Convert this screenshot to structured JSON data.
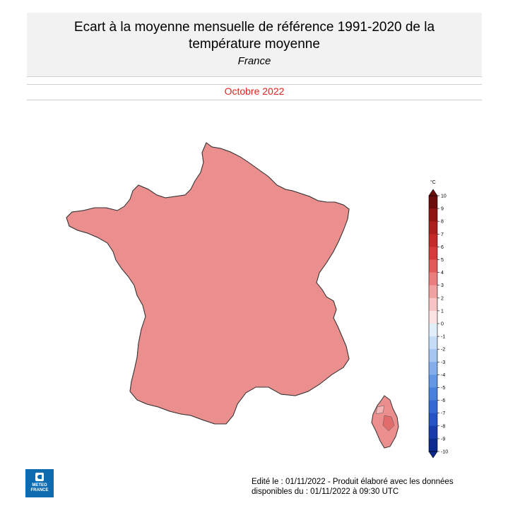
{
  "header": {
    "title_line1": "Ecart à la moyenne mensuelle de référence 1991-2020 de la",
    "title_line2": "température moyenne",
    "region": "France"
  },
  "period": "Octobre 2022",
  "legend": {
    "unit": "°C",
    "ticks": [
      "10",
      "9",
      "8",
      "7",
      "6",
      "5",
      "4",
      "3",
      "2",
      "1",
      "0",
      "-1",
      "-2",
      "-3",
      "-4",
      "-5",
      "-6",
      "-7",
      "-8",
      "-9",
      "-10"
    ],
    "colors": [
      "#6b0d0d",
      "#8e1414",
      "#ad1f1f",
      "#c42a2a",
      "#d63a3a",
      "#e25a5a",
      "#ea7e7e",
      "#f0a1a1",
      "#f6c4c4",
      "#fbe3e3",
      "#ffffff",
      "#e3eefb",
      "#c6dcf6",
      "#a4c5f0",
      "#83aeea",
      "#6397e3",
      "#4980dc",
      "#3469d4",
      "#2552c4",
      "#193bac",
      "#0d2a8e"
    ]
  },
  "map_colors": {
    "anomaly_1_2": "#f3b5b5",
    "anomaly_2_3": "#eb8e8e",
    "anomaly_3_4": "#e06c6c",
    "anomaly_4_5": "#d34f4f",
    "border": "#333333"
  },
  "footer": {
    "line1": "Edité le : 01/11/2022 - Produit élaboré avec les données",
    "line2": "disponibles du : 01/11/2022 à 09:30 UTC"
  },
  "logo": {
    "line1": "METEO",
    "line2": "FRANCE"
  }
}
